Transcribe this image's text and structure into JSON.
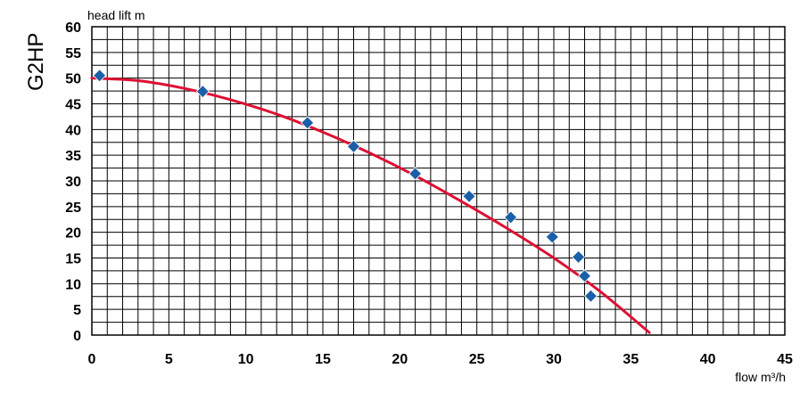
{
  "chart_data": {
    "type": "scatter",
    "side_label": "G2HP",
    "ylabel": "head lift m",
    "xlabel": "flow m³/h",
    "xlim": [
      0,
      45
    ],
    "ylim": [
      0,
      60
    ],
    "x_major_ticks": [
      0,
      5,
      10,
      15,
      20,
      25,
      30,
      35,
      40,
      45
    ],
    "y_major_ticks": [
      0,
      5,
      10,
      15,
      20,
      25,
      30,
      35,
      40,
      45,
      50,
      55,
      60
    ],
    "x_minor_step": 1,
    "y_minor_step": 2.5,
    "grid": true,
    "colors": {
      "curve": "#dd1133",
      "points": "#1a5fa8",
      "grid": "#000000"
    },
    "series": [
      {
        "type": "scatter",
        "points": [
          {
            "x": 0.5,
            "y": 50.5
          },
          {
            "x": 7.2,
            "y": 47.4
          },
          {
            "x": 14.0,
            "y": 41.3
          },
          {
            "x": 17.0,
            "y": 36.7
          },
          {
            "x": 21.0,
            "y": 31.4
          },
          {
            "x": 24.5,
            "y": 27.0
          },
          {
            "x": 27.2,
            "y": 22.9
          },
          {
            "x": 29.9,
            "y": 19.1
          },
          {
            "x": 31.6,
            "y": 15.2
          },
          {
            "x": 32.0,
            "y": 11.5
          },
          {
            "x": 32.4,
            "y": 7.6
          }
        ]
      },
      {
        "type": "line",
        "points": [
          {
            "x": 0,
            "y": 50.0
          },
          {
            "x": 3,
            "y": 49.5
          },
          {
            "x": 6,
            "y": 48.0
          },
          {
            "x": 9,
            "y": 45.8
          },
          {
            "x": 12,
            "y": 43.0
          },
          {
            "x": 15,
            "y": 39.5
          },
          {
            "x": 18,
            "y": 35.5
          },
          {
            "x": 21,
            "y": 31.0
          },
          {
            "x": 24,
            "y": 26.0
          },
          {
            "x": 27,
            "y": 20.7
          },
          {
            "x": 30,
            "y": 15.0
          },
          {
            "x": 33,
            "y": 8.5
          },
          {
            "x": 36.2,
            "y": 0.5
          }
        ]
      }
    ]
  }
}
